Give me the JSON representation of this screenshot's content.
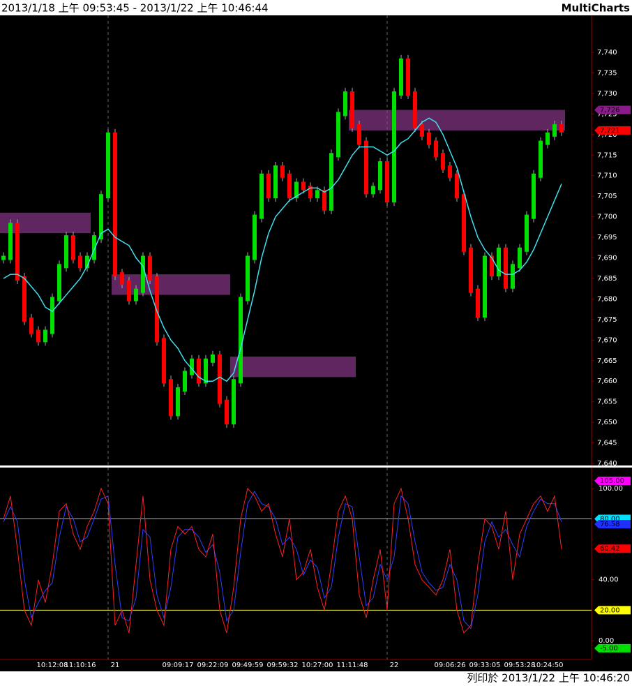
{
  "header": {
    "title": "2013/1/18 上午 09:53:45 - 2013/1/22 上午 10:46:44",
    "brand": "MultiCharts"
  },
  "footer": {
    "text": "列印於 2013/1/22 上午 10:46:20"
  },
  "chart_data": [
    {
      "type": "price",
      "categories": [
        null,
        null,
        null,
        null,
        null,
        null,
        null,
        "10:12:08",
        null,
        null,
        null,
        "11:10:16",
        null,
        null,
        null,
        null,
        "21",
        null,
        null,
        null,
        null,
        null,
        null,
        null,
        null,
        "09:09:17",
        null,
        null,
        null,
        null,
        "09:22:09",
        null,
        null,
        null,
        null,
        "09:49:59",
        null,
        null,
        null,
        null,
        "09:59:32",
        null,
        null,
        null,
        null,
        "10:27:00",
        null,
        null,
        null,
        null,
        "11:11:48",
        null,
        null,
        null,
        null,
        null,
        "22",
        null,
        null,
        null,
        null,
        null,
        null,
        null,
        "09:06:26",
        null,
        null,
        null,
        null,
        "09:33:05",
        null,
        null,
        null,
        null,
        "09:53:28",
        null,
        null,
        null,
        "10:24:50",
        null,
        null
      ],
      "series": [
        {
          "color": "#00e000",
          "down_color": "#ff0000",
          "values": [
            7690,
            7698,
            7685,
            7675,
            7672,
            7670,
            7672,
            7680,
            7688,
            7695,
            7690,
            7688,
            7690,
            7695,
            7705,
            7720,
            7686,
            7684,
            7680,
            7682,
            7690,
            7685,
            7670,
            7660,
            7652,
            7658,
            7662,
            7665,
            7660,
            7665,
            7666,
            7655,
            7650,
            7660,
            7680,
            7690,
            7700,
            7710,
            7705,
            7712,
            7710,
            7705,
            7708,
            7707,
            7705,
            7706,
            7702,
            7715,
            7725,
            7730,
            7722,
            7718,
            7706,
            7707,
            7713,
            7704,
            7730,
            7738,
            7730,
            7722,
            7720,
            7718,
            7715,
            7712,
            7710,
            7705,
            7692,
            7682,
            7676,
            7690,
            7686,
            7692,
            7683,
            7688,
            7692,
            7700,
            7710,
            7718,
            7720,
            7722,
            7721
          ]
        },
        {
          "color": "#40e0f0",
          "values": [
            7685,
            7686,
            7686,
            7685,
            7683,
            7681,
            7678,
            7677,
            7679,
            7681,
            7683,
            7685,
            7688,
            7692,
            7696,
            7697,
            7695,
            7694,
            7693,
            7690,
            7688,
            7682,
            7677,
            7673,
            7670,
            7668,
            7665,
            7663,
            7661,
            7660,
            7660,
            7661,
            7660,
            7662,
            7668,
            7675,
            7682,
            7690,
            7696,
            7700,
            7702,
            7704,
            7705,
            7706,
            7707,
            7707,
            7706,
            7707,
            7709,
            7712,
            7715,
            7717,
            7717,
            7717,
            7716,
            7715,
            7716,
            7718,
            7719,
            7721,
            7723,
            7724,
            7723,
            7720,
            7716,
            7712,
            7706,
            7700,
            7695,
            7692,
            7690,
            7687,
            7686,
            7686,
            7687,
            7689,
            7692,
            7696,
            7700,
            7704,
            7708
          ]
        }
      ],
      "zones": [
        {
          "start": 0,
          "end": 13,
          "low": 7696,
          "high": 7701
        },
        {
          "start": 16,
          "end": 33,
          "low": 7681,
          "high": 7686
        },
        {
          "start": 33,
          "end": 51,
          "low": 7661,
          "high": 7666
        },
        {
          "start": 50,
          "end": 81,
          "low": 7721,
          "high": 7726
        }
      ],
      "zone_color": "#6a2a6a",
      "ylim": [
        7639.5,
        7749
      ],
      "yticks": [
        {
          "value": 7640,
          "label": "7,640"
        },
        {
          "value": 7645,
          "label": "7,645"
        },
        {
          "value": 7650,
          "label": "7,650"
        },
        {
          "value": 7655,
          "label": "7,655"
        },
        {
          "value": 7660,
          "label": "7,660"
        },
        {
          "value": 7665,
          "label": "7,665"
        },
        {
          "value": 7670,
          "label": "7,670"
        },
        {
          "value": 7675,
          "label": "7,675"
        },
        {
          "value": 7680,
          "label": "7,680"
        },
        {
          "value": 7685,
          "label": "7,685"
        },
        {
          "value": 7690,
          "label": "7,690"
        },
        {
          "value": 7695,
          "label": "7,695"
        },
        {
          "value": 7700,
          "label": "7,700"
        },
        {
          "value": 7705,
          "label": "7,705"
        },
        {
          "value": 7710,
          "label": "7,710"
        },
        {
          "value": 7715,
          "label": "7,715"
        },
        {
          "value": 7720,
          "label": "7,720"
        },
        {
          "value": 7725,
          "label": "7,725"
        },
        {
          "value": 7730,
          "label": "7,730"
        },
        {
          "value": 7735,
          "label": "7,735"
        },
        {
          "value": 7740,
          "label": "7,740"
        }
      ],
      "flags": [
        {
          "value": 7726,
          "label": "7,726",
          "color": "#8b1a8b"
        },
        {
          "value": 7721,
          "label": "7,721",
          "color": "#ff0000"
        }
      ]
    },
    {
      "type": "oscillator",
      "series": [
        {
          "color": "#ff2020",
          "values": [
            80,
            95,
            60,
            20,
            10,
            40,
            25,
            50,
            85,
            90,
            70,
            60,
            75,
            85,
            100,
            90,
            10,
            20,
            5,
            50,
            95,
            40,
            20,
            10,
            60,
            75,
            70,
            75,
            60,
            55,
            70,
            20,
            5,
            35,
            80,
            100,
            95,
            85,
            90,
            70,
            55,
            80,
            40,
            45,
            60,
            35,
            20,
            50,
            85,
            95,
            80,
            30,
            15,
            40,
            60,
            20,
            90,
            100,
            80,
            50,
            40,
            35,
            30,
            40,
            60,
            20,
            5,
            10,
            50,
            80,
            75,
            60,
            85,
            40,
            70,
            80,
            90,
            95,
            85,
            95,
            60
          ]
        },
        {
          "color": "#3040ff",
          "values": [
            78,
            88,
            78,
            40,
            15,
            25,
            33,
            38,
            68,
            88,
            80,
            65,
            68,
            80,
            93,
            95,
            50,
            15,
            13,
            28,
            73,
            68,
            30,
            15,
            35,
            68,
            73,
            73,
            68,
            58,
            63,
            45,
            13,
            20,
            58,
            90,
            98,
            90,
            88,
            80,
            63,
            68,
            60,
            43,
            53,
            48,
            28,
            35,
            68,
            90,
            88,
            55,
            23,
            28,
            50,
            40,
            55,
            95,
            90,
            65,
            45,
            38,
            33,
            35,
            50,
            40,
            13,
            8,
            30,
            65,
            78,
            68,
            73,
            63,
            55,
            75,
            85,
            93,
            90,
            90,
            78
          ]
        }
      ],
      "levels": [
        {
          "value": 80,
          "color": "#40e0f0"
        },
        {
          "value": 20,
          "color": "#ffff40"
        }
      ],
      "ylim": [
        -12.4,
        112.8
      ],
      "yticks": [
        {
          "value": 0,
          "label": "0.00"
        },
        {
          "value": 40,
          "label": "40.00"
        },
        {
          "value": 100,
          "label": "100.00"
        }
      ],
      "flags": [
        {
          "value": 105,
          "label": "105.00",
          "color": "#ff00ff"
        },
        {
          "value": 80,
          "label": "80.00",
          "color": "#00e0ff"
        },
        {
          "value": 76.58,
          "label": "76.58",
          "color": "#2030ff"
        },
        {
          "value": 60.42,
          "label": "60.42",
          "color": "#ff0000"
        },
        {
          "value": 20,
          "label": "20.00",
          "color": "#ffff00"
        },
        {
          "value": -5,
          "label": "-5.00",
          "color": "#00e000"
        }
      ]
    }
  ]
}
